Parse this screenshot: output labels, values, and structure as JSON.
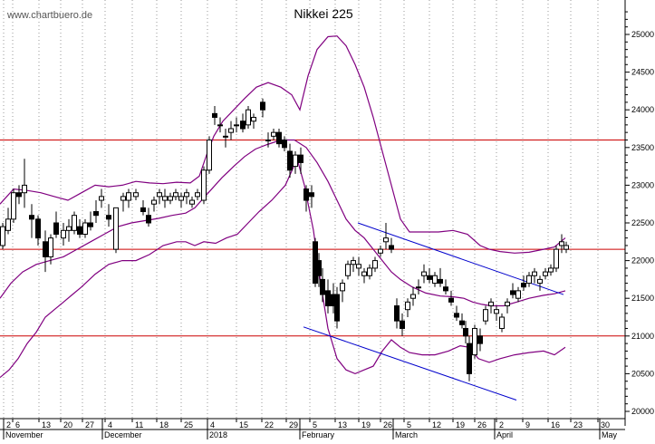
{
  "watermark": "www.chartbuero.de",
  "chart_data": {
    "type": "candlestick",
    "title": "Nikkei 225",
    "xlabel": "",
    "ylabel": "",
    "ylim": [
      19800,
      25300
    ],
    "y_ticks": [
      20000,
      20500,
      21000,
      21500,
      22000,
      22500,
      23000,
      23500,
      24000,
      24500,
      25000
    ],
    "y_axis_position": "right",
    "grid": "vertical dotted",
    "x_day_ticks": [
      "2",
      "6",
      "13",
      "20",
      "27",
      "4",
      "11",
      "18",
      "25",
      "4",
      "15",
      "22",
      "29",
      "5",
      "13",
      "19",
      "26",
      "5",
      "12",
      "19",
      "26",
      "2",
      "9",
      "16",
      "23",
      "30"
    ],
    "x_month_labels": [
      "November",
      "December",
      "2018",
      "February",
      "March",
      "April",
      "May"
    ],
    "horizontal_levels": [
      23600,
      22150,
      21000
    ],
    "bollinger_bands": {
      "upper": [
        [
          0,
          22750
        ],
        [
          15,
          22950
        ],
        [
          30,
          22930
        ],
        [
          45,
          22900
        ],
        [
          60,
          22850
        ],
        [
          75,
          22800
        ],
        [
          90,
          22900
        ],
        [
          105,
          23000
        ],
        [
          120,
          22980
        ],
        [
          135,
          23000
        ],
        [
          150,
          23050
        ],
        [
          165,
          23030
        ],
        [
          180,
          23020
        ],
        [
          195,
          23040
        ],
        [
          210,
          23030
        ],
        [
          220,
          23120
        ],
        [
          228,
          23400
        ],
        [
          236,
          23650
        ],
        [
          246,
          23850
        ],
        [
          258,
          24000
        ],
        [
          270,
          24150
        ],
        [
          283,
          24300
        ],
        [
          296,
          24360
        ],
        [
          310,
          24300
        ],
        [
          322,
          24200
        ],
        [
          331,
          24000
        ],
        [
          340,
          24450
        ],
        [
          350,
          24800
        ],
        [
          362,
          24970
        ],
        [
          372,
          24980
        ],
        [
          382,
          24850
        ],
        [
          392,
          24600
        ],
        [
          402,
          24300
        ],
        [
          412,
          23900
        ],
        [
          422,
          23450
        ],
        [
          432,
          23000
        ],
        [
          442,
          22550
        ],
        [
          452,
          22380
        ],
        [
          468,
          22380
        ],
        [
          484,
          22380
        ],
        [
          500,
          22400
        ],
        [
          516,
          22350
        ],
        [
          530,
          22200
        ],
        [
          540,
          22150
        ],
        [
          552,
          22120
        ],
        [
          568,
          22100
        ],
        [
          584,
          22110
        ],
        [
          600,
          22150
        ],
        [
          612,
          22180
        ],
        [
          624,
          22300
        ]
      ],
      "middle": [
        [
          0,
          21500
        ],
        [
          12,
          21700
        ],
        [
          25,
          21850
        ],
        [
          40,
          21950
        ],
        [
          55,
          22000
        ],
        [
          70,
          22050
        ],
        [
          85,
          22150
        ],
        [
          100,
          22250
        ],
        [
          115,
          22350
        ],
        [
          130,
          22450
        ],
        [
          145,
          22500
        ],
        [
          160,
          22530
        ],
        [
          175,
          22560
        ],
        [
          190,
          22600
        ],
        [
          205,
          22630
        ],
        [
          215,
          22700
        ],
        [
          230,
          22900
        ],
        [
          245,
          23100
        ],
        [
          258,
          23250
        ],
        [
          270,
          23380
        ],
        [
          282,
          23480
        ],
        [
          295,
          23540
        ],
        [
          310,
          23600
        ],
        [
          325,
          23600
        ],
        [
          338,
          23500
        ],
        [
          350,
          23300
        ],
        [
          362,
          23050
        ],
        [
          372,
          22800
        ],
        [
          382,
          22550
        ],
        [
          392,
          22400
        ],
        [
          402,
          22300
        ],
        [
          412,
          22150
        ],
        [
          422,
          22000
        ],
        [
          432,
          21850
        ],
        [
          442,
          21750
        ],
        [
          455,
          21650
        ],
        [
          470,
          21570
        ],
        [
          486,
          21530
        ],
        [
          500,
          21520
        ],
        [
          512,
          21500
        ],
        [
          522,
          21450
        ],
        [
          532,
          21420
        ],
        [
          542,
          21400
        ],
        [
          556,
          21400
        ],
        [
          570,
          21450
        ],
        [
          584,
          21500
        ],
        [
          600,
          21540
        ],
        [
          612,
          21560
        ],
        [
          624,
          21600
        ]
      ],
      "lower": [
        [
          0,
          20450
        ],
        [
          10,
          20550
        ],
        [
          20,
          20700
        ],
        [
          30,
          20900
        ],
        [
          40,
          21050
        ],
        [
          50,
          21250
        ],
        [
          60,
          21350
        ],
        [
          70,
          21450
        ],
        [
          80,
          21550
        ],
        [
          90,
          21650
        ],
        [
          105,
          21820
        ],
        [
          120,
          21950
        ],
        [
          135,
          22000
        ],
        [
          150,
          22000
        ],
        [
          165,
          22080
        ],
        [
          180,
          22200
        ],
        [
          195,
          22250
        ],
        [
          205,
          22250
        ],
        [
          215,
          22200
        ],
        [
          225,
          22250
        ],
        [
          238,
          22230
        ],
        [
          250,
          22300
        ],
        [
          262,
          22350
        ],
        [
          274,
          22500
        ],
        [
          286,
          22650
        ],
        [
          300,
          22800
        ],
        [
          315,
          23000
        ],
        [
          328,
          23350
        ],
        [
          336,
          23000
        ],
        [
          346,
          22400
        ],
        [
          354,
          21700
        ],
        [
          362,
          21100
        ],
        [
          372,
          20700
        ],
        [
          382,
          20550
        ],
        [
          392,
          20500
        ],
        [
          402,
          20550
        ],
        [
          412,
          20600
        ],
        [
          422,
          20800
        ],
        [
          432,
          20950
        ],
        [
          442,
          20850
        ],
        [
          452,
          20780
        ],
        [
          466,
          20750
        ],
        [
          480,
          20750
        ],
        [
          495,
          20800
        ],
        [
          508,
          20870
        ],
        [
          518,
          20850
        ],
        [
          528,
          20700
        ],
        [
          540,
          20650
        ],
        [
          552,
          20700
        ],
        [
          568,
          20750
        ],
        [
          584,
          20780
        ],
        [
          600,
          20800
        ],
        [
          612,
          20750
        ],
        [
          624,
          20850
        ]
      ]
    },
    "trend_lines": [
      {
        "color": "#0000cc",
        "points": [
          [
            395,
            22500
          ],
          [
            622,
            21550
          ]
        ]
      },
      {
        "color": "#0000cc",
        "points": [
          [
            335,
            21120
          ],
          [
            570,
            20150
          ]
        ]
      }
    ],
    "candles": [
      [
        3,
        22200,
        22500,
        22150,
        22450
      ],
      [
        9,
        22400,
        22700,
        22350,
        22550
      ],
      [
        15,
        22550,
        22950,
        22500,
        22900
      ],
      [
        21,
        22900,
        23000,
        22750,
        22850
      ],
      [
        27,
        22900,
        23350,
        22700,
        23000
      ],
      [
        35,
        22600,
        22750,
        22300,
        22550
      ],
      [
        42,
        22550,
        22600,
        22200,
        22300
      ],
      [
        50,
        22250,
        22400,
        21850,
        22050
      ],
      [
        56,
        22050,
        22350,
        21950,
        22300
      ],
      [
        62,
        22500,
        22650,
        22300,
        22350
      ],
      [
        70,
        22300,
        22500,
        22200,
        22400
      ],
      [
        76,
        22400,
        22550,
        22250,
        22450
      ],
      [
        82,
        22400,
        22650,
        22350,
        22600
      ],
      [
        88,
        22450,
        22550,
        22300,
        22350
      ],
      [
        94,
        22350,
        22550,
        22300,
        22500
      ],
      [
        100,
        22500,
        22650,
        22400,
        22450
      ],
      [
        106,
        22650,
        22800,
        22500,
        22600
      ],
      [
        112,
        22800,
        22950,
        22700,
        22850
      ],
      [
        120,
        22600,
        22750,
        22450,
        22550
      ],
      [
        128,
        22150,
        22700,
        22100,
        22700
      ],
      [
        136,
        22800,
        22900,
        22650,
        22850
      ],
      [
        142,
        22800,
        22950,
        22700,
        22900
      ],
      [
        150,
        22850,
        22950,
        22800,
        22900
      ],
      [
        158,
        22700,
        22800,
        22600,
        22650
      ],
      [
        164,
        22600,
        22700,
        22450,
        22500
      ],
      [
        170,
        22750,
        22850,
        22650,
        22800
      ],
      [
        176,
        22850,
        22950,
        22750,
        22900
      ],
      [
        182,
        22800,
        22950,
        22700,
        22850
      ],
      [
        188,
        22800,
        22900,
        22750,
        22850
      ],
      [
        194,
        22850,
        22950,
        22800,
        22900
      ],
      [
        200,
        22800,
        22900,
        22700,
        22850
      ],
      [
        206,
        22850,
        22950,
        22750,
        22900
      ],
      [
        212,
        22750,
        22850,
        22700,
        22800
      ],
      [
        218,
        22850,
        22950,
        22800,
        22900
      ],
      [
        225,
        22800,
        23250,
        22750,
        23200
      ],
      [
        231,
        23200,
        23650,
        23150,
        23600
      ],
      [
        237,
        23950,
        24050,
        23800,
        23900
      ],
      [
        243,
        23800,
        23900,
        23700,
        23800
      ],
      [
        249,
        23650,
        23750,
        23500,
        23650
      ],
      [
        255,
        23700,
        23850,
        23600,
        23750
      ],
      [
        261,
        23800,
        23900,
        23700,
        23800
      ],
      [
        268,
        23850,
        23950,
        23700,
        23750
      ],
      [
        274,
        23800,
        24050,
        23750,
        24000
      ],
      [
        280,
        23850,
        23950,
        23750,
        23900
      ],
      [
        290,
        24100,
        24150,
        23900,
        24000
      ],
      [
        296,
        23600,
        23700,
        23500,
        23600
      ],
      [
        302,
        23650,
        23750,
        23600,
        23700
      ],
      [
        308,
        23700,
        23750,
        23500,
        23550
      ],
      [
        314,
        23600,
        23650,
        23450,
        23500
      ],
      [
        320,
        23450,
        23550,
        23100,
        23200
      ],
      [
        326,
        23250,
        23450,
        23150,
        23400
      ],
      [
        332,
        23400,
        23500,
        23150,
        23300
      ],
      [
        338,
        22950,
        23000,
        22650,
        22800
      ],
      [
        344,
        22900,
        23000,
        22700,
        22850
      ],
      [
        348,
        22250,
        22300,
        21650,
        21700
      ],
      [
        352,
        22000,
        22100,
        21650,
        21800
      ],
      [
        356,
        21750,
        21900,
        21450,
        21550
      ],
      [
        362,
        21600,
        21750,
        21300,
        21400
      ],
      [
        368,
        21550,
        21700,
        21300,
        21400
      ],
      [
        372,
        21550,
        21650,
        21100,
        21200
      ],
      [
        378,
        21600,
        21750,
        21450,
        21700
      ],
      [
        384,
        21800,
        22000,
        21750,
        21950
      ],
      [
        390,
        21950,
        22050,
        21850,
        22000
      ],
      [
        396,
        21900,
        22050,
        21800,
        21950
      ],
      [
        402,
        21800,
        21900,
        21700,
        21850
      ],
      [
        408,
        21800,
        21950,
        21750,
        21900
      ],
      [
        414,
        21900,
        22050,
        21850,
        22000
      ],
      [
        420,
        22100,
        22200,
        22050,
        22150
      ],
      [
        426,
        22250,
        22500,
        22150,
        22300
      ],
      [
        432,
        22200,
        22300,
        22100,
        22150
      ],
      [
        438,
        21400,
        21500,
        21100,
        21200
      ],
      [
        444,
        21200,
        21300,
        21000,
        21100
      ],
      [
        450,
        21350,
        21500,
        21250,
        21450
      ],
      [
        456,
        21500,
        21650,
        21400,
        21550
      ],
      [
        462,
        21650,
        21750,
        21550,
        21650
      ],
      [
        468,
        21800,
        21950,
        21700,
        21850
      ],
      [
        474,
        21800,
        21900,
        21700,
        21750
      ],
      [
        480,
        21700,
        21850,
        21650,
        21800
      ],
      [
        486,
        21750,
        21900,
        21650,
        21700
      ],
      [
        492,
        21650,
        21750,
        21550,
        21600
      ],
      [
        498,
        21500,
        21600,
        21400,
        21450
      ],
      [
        504,
        21300,
        21400,
        21200,
        21250
      ],
      [
        510,
        21200,
        21300,
        21100,
        21150
      ],
      [
        514,
        21100,
        21200,
        20900,
        21000
      ],
      [
        518,
        20900,
        21000,
        20400,
        20500
      ],
      [
        524,
        20750,
        21150,
        20700,
        21100
      ],
      [
        530,
        21000,
        21100,
        20800,
        20900
      ],
      [
        536,
        21200,
        21400,
        21150,
        21350
      ],
      [
        542,
        21400,
        21500,
        21300,
        21450
      ],
      [
        548,
        21300,
        21400,
        21200,
        21350
      ],
      [
        554,
        21100,
        21300,
        21050,
        21250
      ],
      [
        560,
        21400,
        21500,
        21300,
        21450
      ],
      [
        566,
        21600,
        21700,
        21500,
        21550
      ],
      [
        572,
        21500,
        21650,
        21450,
        21600
      ],
      [
        578,
        21700,
        21800,
        21600,
        21650
      ],
      [
        584,
        21700,
        21850,
        21650,
        21800
      ],
      [
        590,
        21800,
        21900,
        21700,
        21850
      ],
      [
        596,
        21700,
        21800,
        21600,
        21750
      ],
      [
        602,
        21800,
        21900,
        21750,
        21850
      ],
      [
        608,
        21850,
        21950,
        21800,
        21900
      ],
      [
        614,
        21900,
        22200,
        21850,
        22150
      ],
      [
        620,
        22200,
        22350,
        22100,
        22250
      ],
      [
        625,
        22150,
        22250,
        22100,
        22200
      ]
    ]
  }
}
